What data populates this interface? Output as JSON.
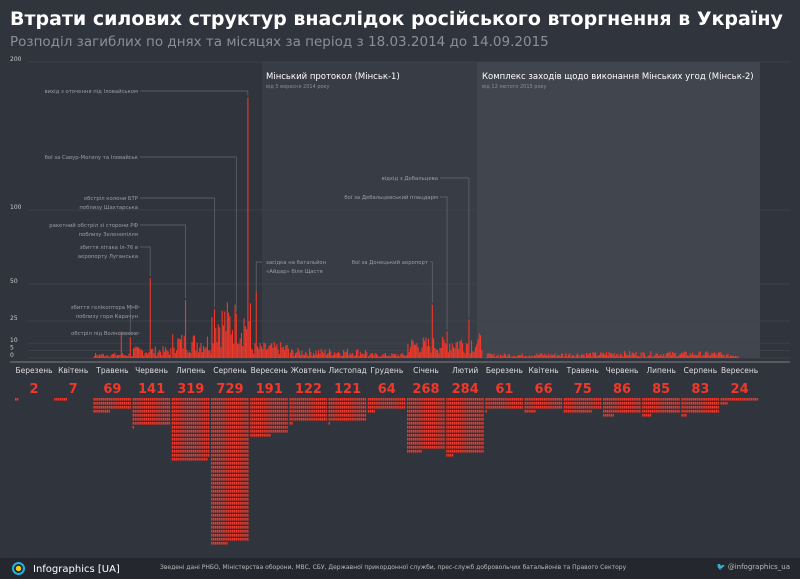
{
  "title": "Втрати силових структур внаслідок російського вторгнення в Україну",
  "subtitle": "Розподіл загиблих по днях та місяцях за період з 18.03.2014 до 14.09.2015",
  "periods": [
    {
      "title": "Мінський протокол (Мінськ-1)",
      "sub": "від 5 вересня 2014 року"
    },
    {
      "title": "Комплекс заходів щодо виконання Мінських угод (Мінськ-2)",
      "sub": "від 12 лютого 2015 року"
    }
  ],
  "colors": {
    "bar": "#f0392b",
    "background": "#30343c",
    "minsk1": "#383c45",
    "minsk2": "#41454e"
  },
  "chart_data": {
    "type": "bar",
    "yticks": [
      0,
      5,
      10,
      25,
      50,
      100,
      200
    ],
    "ylim": [
      0,
      200
    ],
    "months": [
      "Березень",
      "Квітень",
      "Травень",
      "Червень",
      "Липень",
      "Серпень",
      "Вересень",
      "Жовтень",
      "Листопад",
      "Грудень",
      "Січень",
      "Лютий",
      "Березень",
      "Квітень",
      "Травень",
      "Червень",
      "Липень",
      "Серпень",
      "Вересень"
    ],
    "monthly_totals": [
      2,
      7,
      69,
      141,
      319,
      729,
      191,
      122,
      121,
      64,
      268,
      284,
      61,
      66,
      75,
      86,
      85,
      83,
      24
    ],
    "annotations": [
      {
        "label": "вихід з оточення під Іловайськом",
        "month": 5,
        "day": 29,
        "value": 176
      },
      {
        "label": "бої за Савур-Могилу та Іловайськ",
        "month": 5,
        "day": 20,
        "value": 30
      },
      {
        "label": "обстріл колони БТР поблизу Шахтарська",
        "month": 5,
        "day": 3,
        "value": 33
      },
      {
        "label": "ракетний обстріл зі сторони РФ поблизу Зеленопілля",
        "month": 4,
        "day": 11,
        "value": 39
      },
      {
        "label": "збиття літака Іл-76 в аеропорту Луганська",
        "month": 3,
        "day": 14,
        "value": 54
      },
      {
        "label": "збиття гелікоптера Мі-8 поблизу гори Карачун",
        "month": 2,
        "day": 29,
        "value": 14
      },
      {
        "label": "обстріл під Волновахою",
        "month": 2,
        "day": 22,
        "value": 17
      },
      {
        "label": "засідка на батальйон «Айдар» біля Щастя",
        "month": 6,
        "day": 5,
        "value": 45
      },
      {
        "label": "бої за Донецький аеропорт",
        "month": 10,
        "day": 20,
        "value": 36
      },
      {
        "label": "бої за Дебальцевський плацдарм",
        "month": 11,
        "day": 1,
        "value": 18
      },
      {
        "label": "відхід з Дебальцева",
        "month": 11,
        "day": 18,
        "value": 26
      }
    ]
  },
  "footer": {
    "logo": "Infographics [UA]",
    "source": "Зведені дані  РНБО, Міністерства оборони, МВС, СБУ, Державної прикордонної служби, прес-служб добровольчих батальйонів та Правого Сектору",
    "twitter": "@infographics_ua"
  }
}
